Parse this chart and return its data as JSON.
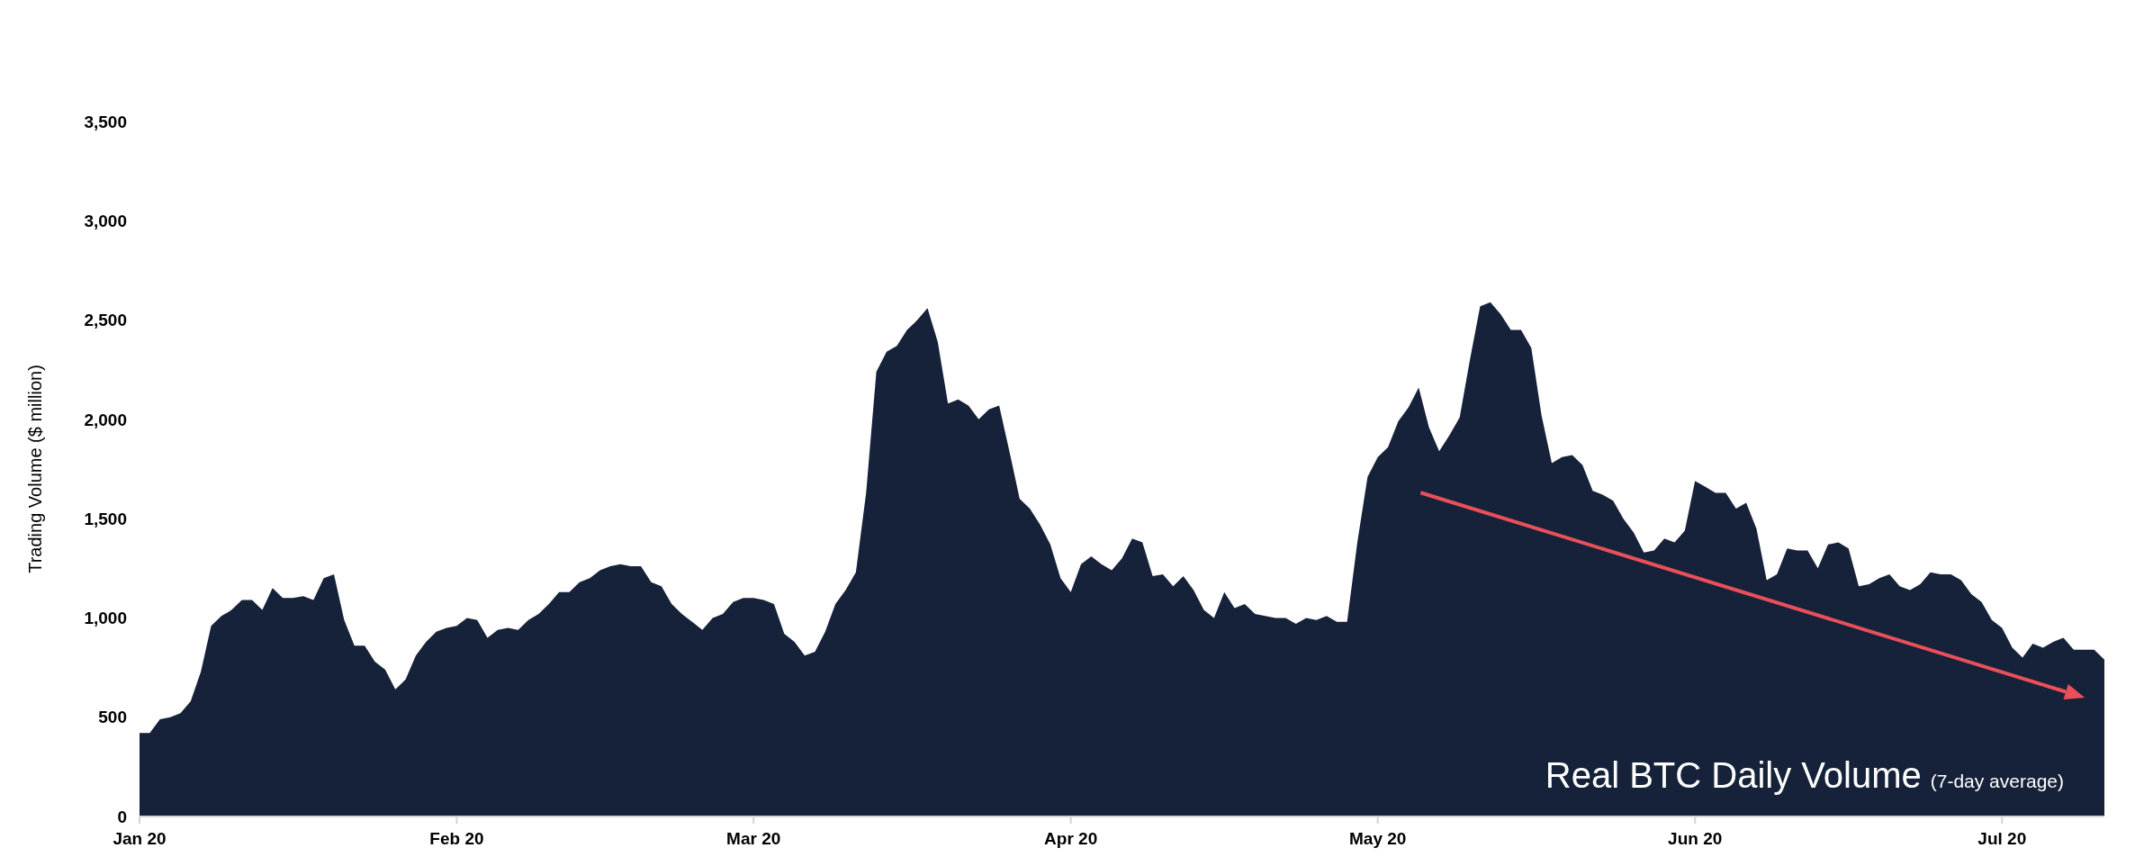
{
  "chart_data": {
    "type": "area",
    "ylabel": "Trading Volume ($ million)",
    "annotations": [
      "Real BTC Daily Volume",
      "(7-day average)"
    ],
    "xlim": [
      "2020-01-01",
      "2020-07-11"
    ],
    "xticks": [
      {
        "value": "2020-01-01",
        "label": "Jan 20"
      },
      {
        "value": "2020-02-01",
        "label": "Feb 20"
      },
      {
        "value": "2020-03-01",
        "label": "Mar 20"
      },
      {
        "value": "2020-04-01",
        "label": "Apr 20"
      },
      {
        "value": "2020-05-01",
        "label": "May 20"
      },
      {
        "value": "2020-06-01",
        "label": "Jun 20"
      },
      {
        "value": "2020-07-01",
        "label": "Jul 20"
      }
    ],
    "ylim": [
      0,
      3500
    ],
    "yticks": [
      0,
      {
        "value": 500,
        "label": "500"
      },
      {
        "value": 1000,
        "label": "1,000"
      },
      {
        "value": 1500,
        "label": "1,500"
      },
      {
        "value": 2000,
        "label": "2,000"
      },
      {
        "value": 2500,
        "label": "2,500"
      },
      {
        "value": 3000,
        "label": "3,000"
      },
      {
        "value": 3500,
        "label": "3,500"
      }
    ],
    "grid": false,
    "x": [
      "2020-01-01",
      "2020-01-02",
      "2020-01-03",
      "2020-01-04",
      "2020-01-05",
      "2020-01-06",
      "2020-01-07",
      "2020-01-08",
      "2020-01-09",
      "2020-01-10",
      "2020-01-11",
      "2020-01-12",
      "2020-01-13",
      "2020-01-14",
      "2020-01-15",
      "2020-01-16",
      "2020-01-17",
      "2020-01-18",
      "2020-01-19",
      "2020-01-20",
      "2020-01-21",
      "2020-01-22",
      "2020-01-23",
      "2020-01-24",
      "2020-01-25",
      "2020-01-26",
      "2020-01-27",
      "2020-01-28",
      "2020-01-29",
      "2020-01-30",
      "2020-01-31",
      "2020-02-01",
      "2020-02-02",
      "2020-02-03",
      "2020-02-04",
      "2020-02-05",
      "2020-02-06",
      "2020-02-07",
      "2020-02-08",
      "2020-02-09",
      "2020-02-10",
      "2020-02-11",
      "2020-02-12",
      "2020-02-13",
      "2020-02-14",
      "2020-02-15",
      "2020-02-16",
      "2020-02-17",
      "2020-02-18",
      "2020-02-19",
      "2020-02-20",
      "2020-02-21",
      "2020-02-22",
      "2020-02-23",
      "2020-02-24",
      "2020-02-25",
      "2020-02-26",
      "2020-02-27",
      "2020-02-28",
      "2020-02-29",
      "2020-03-01",
      "2020-03-02",
      "2020-03-03",
      "2020-03-04",
      "2020-03-05",
      "2020-03-06",
      "2020-03-07",
      "2020-03-08",
      "2020-03-09",
      "2020-03-10",
      "2020-03-11",
      "2020-03-12",
      "2020-03-13",
      "2020-03-14",
      "2020-03-15",
      "2020-03-16",
      "2020-03-17",
      "2020-03-18",
      "2020-03-19",
      "2020-03-20",
      "2020-03-21",
      "2020-03-22",
      "2020-03-23",
      "2020-03-24",
      "2020-03-25",
      "2020-03-26",
      "2020-03-27",
      "2020-03-28",
      "2020-03-29",
      "2020-03-30",
      "2020-03-31",
      "2020-04-01",
      "2020-04-02",
      "2020-04-03",
      "2020-04-04",
      "2020-04-05",
      "2020-04-06",
      "2020-04-07",
      "2020-04-08",
      "2020-04-09",
      "2020-04-10",
      "2020-04-11",
      "2020-04-12",
      "2020-04-13",
      "2020-04-14",
      "2020-04-15",
      "2020-04-16",
      "2020-04-17",
      "2020-04-18",
      "2020-04-19",
      "2020-04-20",
      "2020-04-21",
      "2020-04-22",
      "2020-04-23",
      "2020-04-24",
      "2020-04-25",
      "2020-04-26",
      "2020-04-27",
      "2020-04-28",
      "2020-04-29",
      "2020-04-30",
      "2020-05-01",
      "2020-05-02",
      "2020-05-03",
      "2020-05-04",
      "2020-05-05",
      "2020-05-06",
      "2020-05-07",
      "2020-05-08",
      "2020-05-09",
      "2020-05-10",
      "2020-05-11",
      "2020-05-12",
      "2020-05-13",
      "2020-05-14",
      "2020-05-15",
      "2020-05-16",
      "2020-05-17",
      "2020-05-18",
      "2020-05-19",
      "2020-05-20",
      "2020-05-21",
      "2020-05-22",
      "2020-05-23",
      "2020-05-24",
      "2020-05-25",
      "2020-05-26",
      "2020-05-27",
      "2020-05-28",
      "2020-05-29",
      "2020-05-30",
      "2020-05-31",
      "2020-06-01",
      "2020-06-02",
      "2020-06-03",
      "2020-06-04",
      "2020-06-05",
      "2020-06-06",
      "2020-06-07",
      "2020-06-08",
      "2020-06-09",
      "2020-06-10",
      "2020-06-11",
      "2020-06-12",
      "2020-06-13",
      "2020-06-14",
      "2020-06-15",
      "2020-06-16",
      "2020-06-17",
      "2020-06-18",
      "2020-06-19",
      "2020-06-20",
      "2020-06-21",
      "2020-06-22",
      "2020-06-23",
      "2020-06-24",
      "2020-06-25",
      "2020-06-26",
      "2020-06-27",
      "2020-06-28",
      "2020-06-29",
      "2020-06-30",
      "2020-07-01",
      "2020-07-02",
      "2020-07-03",
      "2020-07-04",
      "2020-07-05",
      "2020-07-06",
      "2020-07-07",
      "2020-07-08",
      "2020-07-09",
      "2020-07-10",
      "2020-07-11"
    ],
    "series": [
      {
        "color": "#16223a",
        "values": [
          420,
          420,
          490,
          500,
          520,
          580,
          730,
          960,
          1010,
          1040,
          1090,
          1090,
          1040,
          1150,
          1100,
          1100,
          1110,
          1090,
          1200,
          1220,
          990,
          860,
          860,
          780,
          740,
          640,
          690,
          810,
          880,
          930,
          950,
          960,
          1000,
          990,
          900,
          940,
          950,
          940,
          990,
          1020,
          1070,
          1130,
          1130,
          1180,
          1200,
          1240,
          1260,
          1270,
          1260,
          1260,
          1180,
          1160,
          1070,
          1020,
          980,
          940,
          1000,
          1020,
          1080,
          1100,
          1100,
          1090,
          1070,
          920,
          880,
          810,
          830,
          930,
          1070,
          1140,
          1230,
          1630,
          2240,
          2340,
          2370,
          2450,
          2500,
          2560,
          2390,
          2080,
          2100,
          2070,
          2000,
          2050,
          2070,
          1840,
          1600,
          1550,
          1470,
          1370,
          1200,
          1130,
          1270,
          1310,
          1270,
          1240,
          1300,
          1400,
          1380,
          1210,
          1220,
          1160,
          1210,
          1140,
          1040,
          1000,
          1130,
          1050,
          1070,
          1020,
          1010,
          1000,
          1000,
          970,
          1000,
          990,
          1010,
          980,
          980,
          1380,
          1710,
          1810,
          1860,
          1990,
          2060,
          2160,
          1960,
          1840,
          1920,
          2010,
          2300,
          2570,
          2590,
          2530,
          2450,
          2450,
          2360,
          2020,
          1780,
          1810,
          1820,
          1770,
          1640,
          1620,
          1590,
          1500,
          1430,
          1330,
          1340,
          1400,
          1380,
          1440,
          1690,
          1660,
          1630,
          1630,
          1550,
          1580,
          1450,
          1190,
          1220,
          1350,
          1340,
          1340,
          1250,
          1370,
          1380,
          1350,
          1160,
          1170,
          1200,
          1220,
          1160,
          1140,
          1170,
          1230,
          1220,
          1220,
          1190,
          1120,
          1080,
          990,
          950,
          850,
          800,
          870,
          850,
          880,
          900,
          840,
          840,
          840,
          790
        ]
      }
    ]
  }
}
